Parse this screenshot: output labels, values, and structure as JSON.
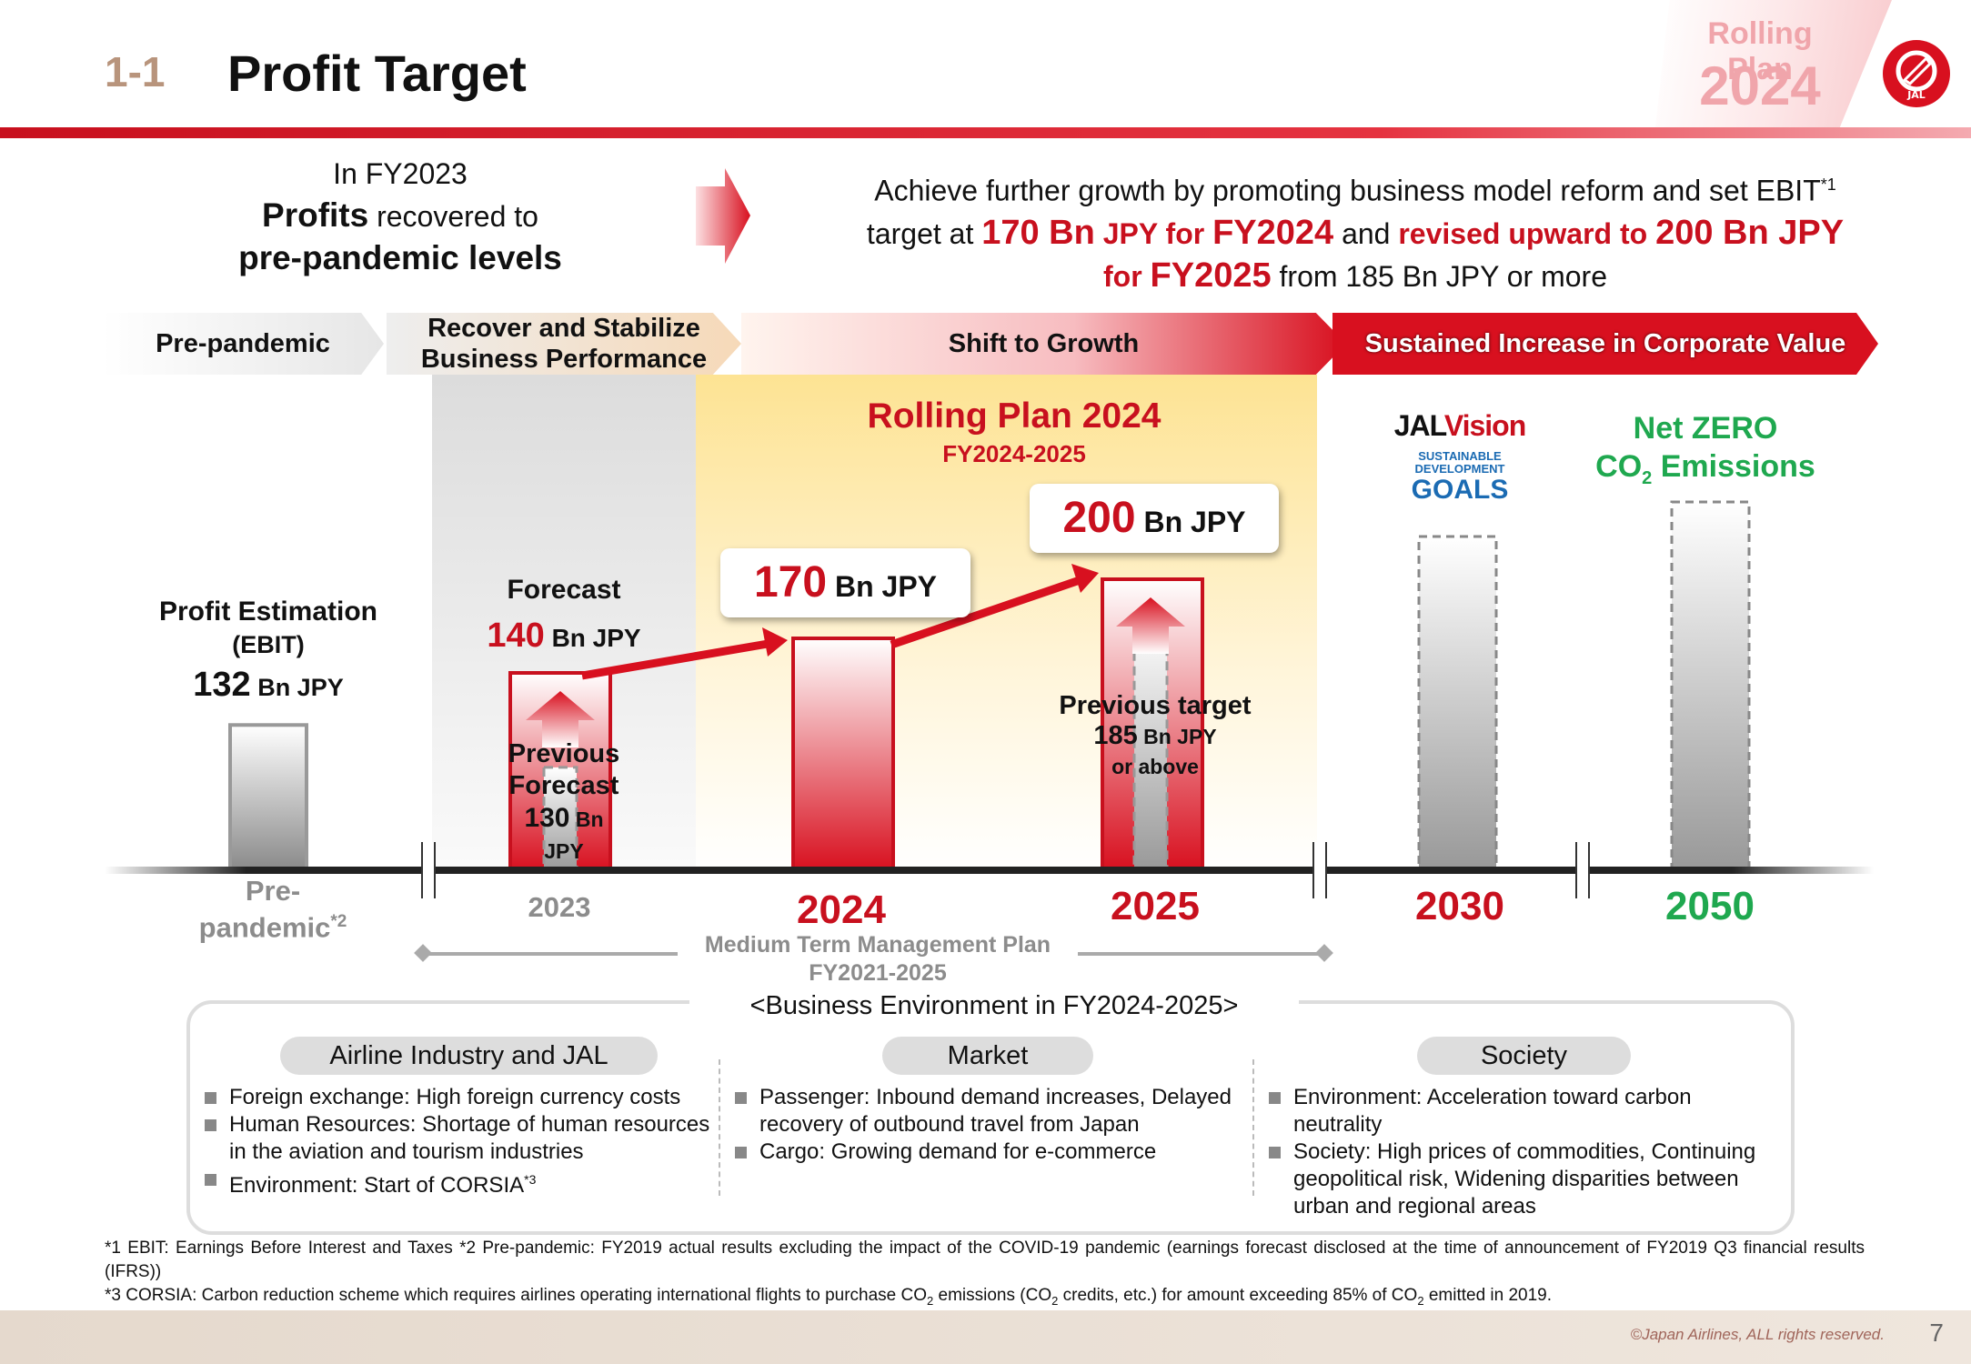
{
  "header": {
    "section_number": "1-1",
    "title": "Profit Target",
    "badge_line1": "Rolling Plan",
    "badge_line2": "2024",
    "logo_text": "JAL"
  },
  "intro_left": {
    "line1": "In FY2023",
    "line2_bold": "Profits",
    "line2_rest": " recovered to",
    "line3": "pre-pandemic levels"
  },
  "intro_right": {
    "p1": "Achieve further growth by promoting business model reform and set EBIT",
    "p1_sup": "*1",
    "p2a": "target at ",
    "p2b": "170 Bn",
    "p2c": " JPY for ",
    "p2d": "FY2024",
    "p2e": " and ",
    "p2f": "revised upward to ",
    "p2g": "200 Bn JPY",
    "p3a": "for ",
    "p3b": "FY2025",
    "p3c": " from 185 Bn JPY or more"
  },
  "phases": [
    "Pre-pandemic",
    "Recover and Stabilize Business Performance",
    "Shift to Growth",
    "Sustained Increase in Corporate Value"
  ],
  "rolling_plan": {
    "title": "Rolling Plan 2024",
    "period": "FY2024-2025"
  },
  "prepandemic": {
    "label1": "Profit Estimation",
    "label2": "(EBIT)",
    "value": "132",
    "unit": " Bn JPY",
    "year1": "Pre-",
    "year2": "pandemic",
    "year_sup": "*2"
  },
  "fy2023": {
    "forecast_label": "Forecast",
    "value": "140",
    "unit": " Bn JPY",
    "prev_label1": "Previous",
    "prev_label2": "Forecast",
    "prev_value": "130",
    "prev_unit": " Bn",
    "prev_unit2": "JPY",
    "year": "2023"
  },
  "fy2024": {
    "value": "170",
    "unit": " Bn JPY",
    "year": "2024"
  },
  "fy2025": {
    "value": "200",
    "unit": " Bn JPY",
    "prev_label": "Previous target",
    "prev_value": "185",
    "prev_unit": " Bn JPY",
    "prev_suffix": "or above",
    "year": "2025"
  },
  "fy2030": {
    "year": "2030",
    "jal": "JAL",
    "vision": "Vision",
    "sdg1": "SUSTAINABLE",
    "sdg2": "DEVELOPMENT",
    "sdg3": "GOALS"
  },
  "fy2050": {
    "year": "2050",
    "line1": "Net ZERO",
    "co2": "CO",
    "co2_sub": "2",
    "line2_rest": " Emissions"
  },
  "mtmp": {
    "line1": "Medium Term Management Plan",
    "line2": "FY2021-2025"
  },
  "chart_data": {
    "type": "bar",
    "categories": [
      "Pre-pandemic",
      "2023",
      "2024",
      "2025"
    ],
    "series": [
      {
        "name": "",
        "values": [
          132,
          140,
          170,
          200
        ]
      },
      {
        "name": "Previous",
        "values": [
          null,
          130,
          null,
          185
        ]
      }
    ],
    "unit": "Bn JPY"
  },
  "env": {
    "title": "<Business Environment in FY2024-2025>",
    "col1": {
      "title": "Airline Industry and JAL",
      "items": [
        "Foreign exchange: High foreign currency costs",
        "Human Resources: Shortage of human resources in the aviation and tourism industries",
        "Environment: Start of CORSIA"
      ],
      "sup3": "*3"
    },
    "col2": {
      "title": "Market",
      "items": [
        "Passenger: Inbound demand increases, Delayed recovery of outbound travel from Japan",
        "Cargo: Growing demand for e-commerce"
      ]
    },
    "col3": {
      "title": "Society",
      "items": [
        "Environment: Acceleration toward carbon neutrality",
        "Society: High prices of commodities, Continuing geopolitical risk, Widening disparities between urban and regional areas"
      ]
    }
  },
  "footnotes": {
    "f1": "*1 EBIT: Earnings Before Interest and Taxes  *2 Pre-pandemic: FY2019 actual results excluding the impact of the COVID-19 pandemic (earnings forecast disclosed at the time of announcement of FY2019 Q3 financial results (IFRS))",
    "f3a": "*3 CORSIA: Carbon reduction scheme which requires airlines operating international flights to purchase CO",
    "f3b": " emissions (CO",
    "f3c": " credits, etc.) for amount exceeding 85% of CO",
    "f3d": " emitted in 2019.",
    "sub": "2"
  },
  "copyright": "©Japan Airlines, ALL rights reserved.",
  "page_number": "7",
  "colors": {
    "brand_red": "#c8101e",
    "green": "#1fa84f",
    "grey_text": "#8c8c8c"
  }
}
